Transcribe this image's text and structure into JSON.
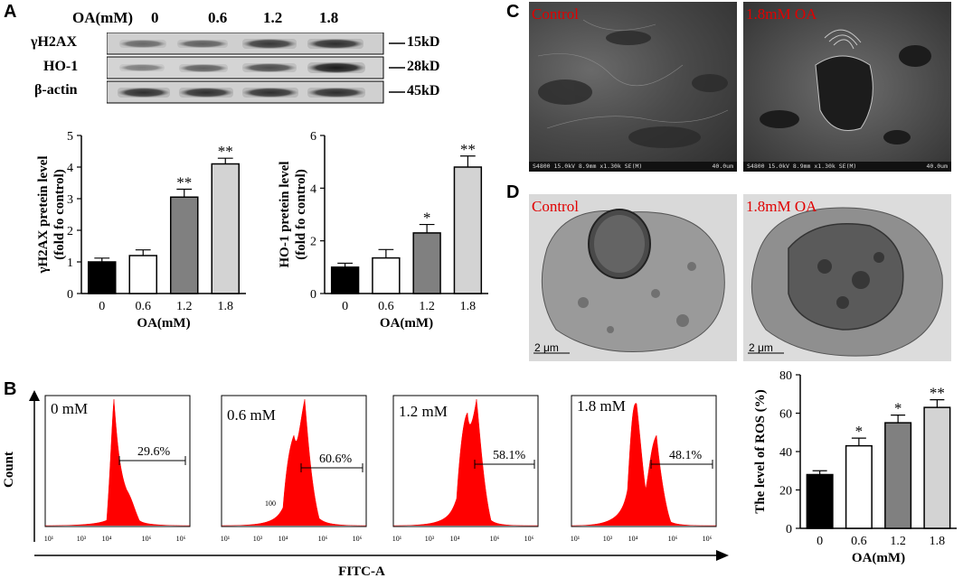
{
  "panels": {
    "a": "A",
    "b": "B",
    "c": "C",
    "d": "D"
  },
  "blot": {
    "header_label": "OA(mM)",
    "lanes": [
      "0",
      "0.6",
      "1.2",
      "1.8"
    ],
    "rows": [
      {
        "name": "γH2AX",
        "size": "15kD",
        "intensity": [
          0.55,
          0.6,
          0.8,
          0.85
        ]
      },
      {
        "name": "HO-1",
        "size": "28kD",
        "intensity": [
          0.45,
          0.6,
          0.7,
          0.95
        ]
      },
      {
        "name": "β-actin",
        "size": "45kD",
        "intensity": [
          0.85,
          0.85,
          0.85,
          0.85
        ]
      }
    ]
  },
  "chart_data": [
    {
      "type": "bar",
      "categories": [
        "0",
        "0.6",
        "1.2",
        "1.8"
      ],
      "values": [
        1.0,
        1.2,
        3.05,
        4.1
      ],
      "errors": [
        0.12,
        0.18,
        0.25,
        0.18
      ],
      "significance": [
        "",
        "",
        "**",
        "**"
      ],
      "fills": [
        "#000000",
        "#ffffff",
        "#808080",
        "#d3d3d3"
      ],
      "ylabel_line1": "γH2AX pretein level",
      "ylabel_line2": "(fold fo control)",
      "xlabel": "OA(mM)",
      "ylim": [
        0,
        5
      ],
      "yticks": [
        "0",
        "1",
        "2",
        "3",
        "4",
        "5"
      ]
    },
    {
      "type": "bar",
      "categories": [
        "0",
        "0.6",
        "1.2",
        "1.8"
      ],
      "values": [
        1.0,
        1.35,
        2.3,
        4.8
      ],
      "errors": [
        0.15,
        0.32,
        0.32,
        0.42
      ],
      "significance": [
        "",
        "",
        "*",
        "**"
      ],
      "fills": [
        "#000000",
        "#ffffff",
        "#808080",
        "#d3d3d3"
      ],
      "ylabel_line1": "HO-1 pretein level",
      "ylabel_line2": "(fold fo control)",
      "xlabel": "OA(mM)",
      "ylim": [
        0,
        6
      ],
      "yticks": [
        "0",
        "2",
        "4",
        "6"
      ]
    },
    {
      "type": "bar",
      "categories": [
        "0",
        "0.6",
        "1.2",
        "1.8"
      ],
      "values": [
        28,
        43,
        55,
        63
      ],
      "errors": [
        2,
        4,
        4,
        4
      ],
      "significance": [
        "",
        "*",
        "*",
        "**"
      ],
      "fills": [
        "#000000",
        "#ffffff",
        "#808080",
        "#d3d3d3"
      ],
      "ylabel_line1": "The level of ROS (%)",
      "ylabel_line2": "",
      "xlabel": "OA(mM)",
      "ylim": [
        0,
        80
      ],
      "yticks": [
        "0",
        "20",
        "40",
        "60",
        "80"
      ]
    }
  ],
  "flow": {
    "y_axis_label": "Count",
    "x_axis_label": "FITC-A",
    "plots": [
      {
        "label": "0 mM",
        "percent": "29.6%",
        "extra": ""
      },
      {
        "label": "0.6 mM",
        "percent": "60.6%",
        "extra": "100"
      },
      {
        "label": "1.2 mM",
        "percent": "58.1%",
        "extra": ""
      },
      {
        "label": "1.8 mM",
        "percent": "48.1%",
        "extra": ""
      }
    ],
    "xticks": [
      "10¹",
      "10³",
      "10⁴",
      "10⁶",
      "10⁶"
    ]
  },
  "sem": {
    "left_label": "Control",
    "right_label": "1.8mM OA",
    "info": "S4800 15.0kV 8.9mm x1.30k SE(M)",
    "scale": "40.0um"
  },
  "tem": {
    "left_label": "Control",
    "right_label": "1.8mM OA",
    "scale": "2 μm"
  }
}
